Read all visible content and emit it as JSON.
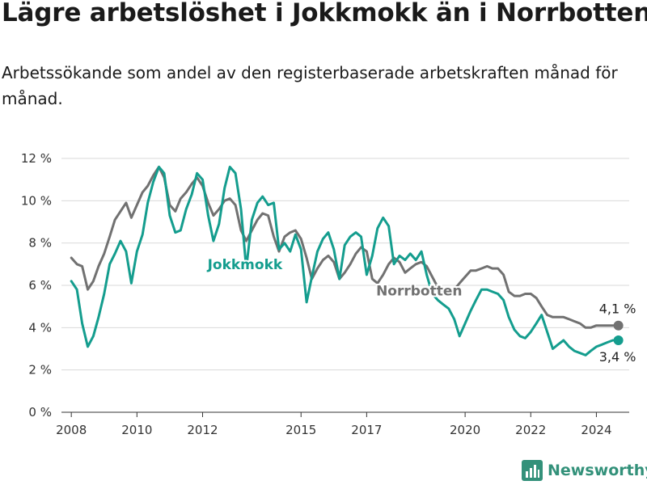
{
  "header": {
    "title": "Lägre arbetslöshet i Jokkmokk än i Norrbotten",
    "subtitle": "Arbetssökande som andel av den registerbaserade arbetskraften månad för månad."
  },
  "brand": {
    "name": "Newsworthy",
    "icon": "bar-chart-logo-icon",
    "color": "#33917a"
  },
  "chart_data": {
    "type": "line",
    "title": "Lägre arbetslöshet i Jokkmokk än i Norrbotten",
    "subtitle": "Arbetssökande som andel av den registerbaserade arbetskraften månad för månad.",
    "xlabel": "",
    "ylabel": "",
    "ylim": [
      0,
      12
    ],
    "xlim": [
      2007.7,
      2025.0
    ],
    "y_ticks": [
      0,
      2,
      4,
      6,
      8,
      10,
      12
    ],
    "y_tick_labels": [
      "0 %",
      "2 %",
      "4 %",
      "6 %",
      "8 %",
      "10 %",
      "12 %"
    ],
    "x_ticks": [
      2008,
      2010,
      2012,
      2015,
      2017,
      2020,
      2022,
      2024
    ],
    "x_tick_labels": [
      "2008",
      "2010",
      "2012",
      "2015",
      "2017",
      "2020",
      "2022",
      "2024"
    ],
    "grid": true,
    "series": [
      {
        "name": "Norrbotten",
        "color": "#717171",
        "label": "Norrbotten",
        "end_label": "4,1 %",
        "end_value": 4.1,
        "points": [
          [
            2008.0,
            7.3
          ],
          [
            2008.17,
            7.0
          ],
          [
            2008.33,
            6.9
          ],
          [
            2008.5,
            5.8
          ],
          [
            2008.67,
            6.2
          ],
          [
            2008.83,
            6.9
          ],
          [
            2009.0,
            7.5
          ],
          [
            2009.17,
            8.3
          ],
          [
            2009.33,
            9.1
          ],
          [
            2009.5,
            9.5
          ],
          [
            2009.67,
            9.9
          ],
          [
            2009.83,
            9.2
          ],
          [
            2010.0,
            9.8
          ],
          [
            2010.17,
            10.4
          ],
          [
            2010.33,
            10.7
          ],
          [
            2010.5,
            11.2
          ],
          [
            2010.67,
            11.6
          ],
          [
            2010.83,
            11.1
          ],
          [
            2011.0,
            9.8
          ],
          [
            2011.17,
            9.5
          ],
          [
            2011.33,
            10.1
          ],
          [
            2011.5,
            10.4
          ],
          [
            2011.67,
            10.8
          ],
          [
            2011.83,
            11.1
          ],
          [
            2012.0,
            10.7
          ],
          [
            2012.17,
            9.9
          ],
          [
            2012.33,
            9.3
          ],
          [
            2012.5,
            9.6
          ],
          [
            2012.67,
            10.0
          ],
          [
            2012.83,
            10.1
          ],
          [
            2013.0,
            9.8
          ],
          [
            2013.17,
            8.6
          ],
          [
            2013.33,
            8.1
          ],
          [
            2013.5,
            8.6
          ],
          [
            2013.67,
            9.1
          ],
          [
            2013.83,
            9.4
          ],
          [
            2014.0,
            9.3
          ],
          [
            2014.17,
            8.3
          ],
          [
            2014.33,
            7.6
          ],
          [
            2014.5,
            8.3
          ],
          [
            2014.67,
            8.5
          ],
          [
            2014.83,
            8.6
          ],
          [
            2015.0,
            8.2
          ],
          [
            2015.17,
            7.3
          ],
          [
            2015.33,
            6.3
          ],
          [
            2015.5,
            6.8
          ],
          [
            2015.67,
            7.2
          ],
          [
            2015.83,
            7.4
          ],
          [
            2016.0,
            7.1
          ],
          [
            2016.17,
            6.3
          ],
          [
            2016.33,
            6.6
          ],
          [
            2016.5,
            7.0
          ],
          [
            2016.67,
            7.5
          ],
          [
            2016.83,
            7.8
          ],
          [
            2017.0,
            7.6
          ],
          [
            2017.17,
            6.3
          ],
          [
            2017.33,
            6.1
          ],
          [
            2017.5,
            6.5
          ],
          [
            2017.67,
            7.0
          ],
          [
            2017.83,
            7.3
          ],
          [
            2018.0,
            7.1
          ],
          [
            2018.17,
            6.6
          ],
          [
            2018.33,
            6.8
          ],
          [
            2018.5,
            7.0
          ],
          [
            2018.67,
            7.1
          ],
          [
            2018.83,
            6.9
          ],
          [
            2019.0,
            6.4
          ],
          [
            2019.17,
            5.9
          ],
          [
            2019.33,
            5.7
          ],
          [
            2019.5,
            5.6
          ],
          [
            2019.67,
            5.8
          ],
          [
            2019.83,
            6.1
          ],
          [
            2020.0,
            6.4
          ],
          [
            2020.17,
            6.7
          ],
          [
            2020.33,
            6.7
          ],
          [
            2020.5,
            6.8
          ],
          [
            2020.67,
            6.9
          ],
          [
            2020.83,
            6.8
          ],
          [
            2021.0,
            6.8
          ],
          [
            2021.17,
            6.5
          ],
          [
            2021.33,
            5.7
          ],
          [
            2021.5,
            5.5
          ],
          [
            2021.67,
            5.5
          ],
          [
            2021.83,
            5.6
          ],
          [
            2022.0,
            5.6
          ],
          [
            2022.17,
            5.4
          ],
          [
            2022.33,
            5.0
          ],
          [
            2022.5,
            4.6
          ],
          [
            2022.67,
            4.5
          ],
          [
            2022.83,
            4.5
          ],
          [
            2023.0,
            4.5
          ],
          [
            2023.17,
            4.4
          ],
          [
            2023.33,
            4.3
          ],
          [
            2023.5,
            4.2
          ],
          [
            2023.67,
            4.0
          ],
          [
            2023.83,
            4.0
          ],
          [
            2024.0,
            4.1
          ],
          [
            2024.17,
            4.1
          ],
          [
            2024.33,
            4.1
          ],
          [
            2024.5,
            4.1
          ],
          [
            2024.67,
            4.1
          ]
        ]
      },
      {
        "name": "Jokkmokk",
        "color": "#149d8e",
        "label": "Jokkmokk",
        "end_label": "3,4 %",
        "end_value": 3.4,
        "points": [
          [
            2008.0,
            6.2
          ],
          [
            2008.17,
            5.8
          ],
          [
            2008.33,
            4.2
          ],
          [
            2008.5,
            3.1
          ],
          [
            2008.67,
            3.6
          ],
          [
            2008.83,
            4.5
          ],
          [
            2009.0,
            5.6
          ],
          [
            2009.17,
            7.0
          ],
          [
            2009.33,
            7.5
          ],
          [
            2009.5,
            8.1
          ],
          [
            2009.67,
            7.6
          ],
          [
            2009.83,
            6.1
          ],
          [
            2010.0,
            7.6
          ],
          [
            2010.17,
            8.4
          ],
          [
            2010.33,
            9.9
          ],
          [
            2010.5,
            10.9
          ],
          [
            2010.67,
            11.6
          ],
          [
            2010.83,
            11.3
          ],
          [
            2011.0,
            9.3
          ],
          [
            2011.17,
            8.5
          ],
          [
            2011.33,
            8.6
          ],
          [
            2011.5,
            9.6
          ],
          [
            2011.67,
            10.3
          ],
          [
            2011.83,
            11.3
          ],
          [
            2012.0,
            11.0
          ],
          [
            2012.17,
            9.3
          ],
          [
            2012.33,
            8.1
          ],
          [
            2012.5,
            8.9
          ],
          [
            2012.67,
            10.6
          ],
          [
            2012.83,
            11.6
          ],
          [
            2013.0,
            11.3
          ],
          [
            2013.17,
            9.6
          ],
          [
            2013.33,
            6.8
          ],
          [
            2013.5,
            9.1
          ],
          [
            2013.67,
            9.9
          ],
          [
            2013.83,
            10.2
          ],
          [
            2014.0,
            9.8
          ],
          [
            2014.17,
            9.9
          ],
          [
            2014.33,
            7.7
          ],
          [
            2014.5,
            8.0
          ],
          [
            2014.67,
            7.6
          ],
          [
            2014.83,
            8.4
          ],
          [
            2015.0,
            7.7
          ],
          [
            2015.17,
            5.2
          ],
          [
            2015.33,
            6.4
          ],
          [
            2015.5,
            7.6
          ],
          [
            2015.67,
            8.2
          ],
          [
            2015.83,
            8.5
          ],
          [
            2016.0,
            7.7
          ],
          [
            2016.17,
            6.3
          ],
          [
            2016.33,
            7.9
          ],
          [
            2016.5,
            8.3
          ],
          [
            2016.67,
            8.5
          ],
          [
            2016.83,
            8.3
          ],
          [
            2017.0,
            6.5
          ],
          [
            2017.17,
            7.4
          ],
          [
            2017.33,
            8.7
          ],
          [
            2017.5,
            9.2
          ],
          [
            2017.67,
            8.8
          ],
          [
            2017.83,
            7.0
          ],
          [
            2018.0,
            7.4
          ],
          [
            2018.17,
            7.2
          ],
          [
            2018.33,
            7.5
          ],
          [
            2018.5,
            7.2
          ],
          [
            2018.67,
            7.6
          ],
          [
            2018.83,
            6.5
          ],
          [
            2019.0,
            5.6
          ],
          [
            2019.17,
            5.3
          ],
          [
            2019.33,
            5.1
          ],
          [
            2019.5,
            4.9
          ],
          [
            2019.67,
            4.4
          ],
          [
            2019.83,
            3.6
          ],
          [
            2020.0,
            4.2
          ],
          [
            2020.17,
            4.8
          ],
          [
            2020.33,
            5.3
          ],
          [
            2020.5,
            5.8
          ],
          [
            2020.67,
            5.8
          ],
          [
            2020.83,
            5.7
          ],
          [
            2021.0,
            5.6
          ],
          [
            2021.17,
            5.3
          ],
          [
            2021.33,
            4.5
          ],
          [
            2021.5,
            3.9
          ],
          [
            2021.67,
            3.6
          ],
          [
            2021.83,
            3.5
          ],
          [
            2022.0,
            3.8
          ],
          [
            2022.17,
            4.2
          ],
          [
            2022.33,
            4.6
          ],
          [
            2022.5,
            3.8
          ],
          [
            2022.67,
            3.0
          ],
          [
            2022.83,
            3.2
          ],
          [
            2023.0,
            3.4
          ],
          [
            2023.17,
            3.1
          ],
          [
            2023.33,
            2.9
          ],
          [
            2023.5,
            2.8
          ],
          [
            2023.67,
            2.7
          ],
          [
            2023.83,
            2.9
          ],
          [
            2024.0,
            3.1
          ],
          [
            2024.17,
            3.2
          ],
          [
            2024.33,
            3.3
          ],
          [
            2024.5,
            3.4
          ],
          [
            2024.67,
            3.4
          ]
        ]
      }
    ]
  }
}
